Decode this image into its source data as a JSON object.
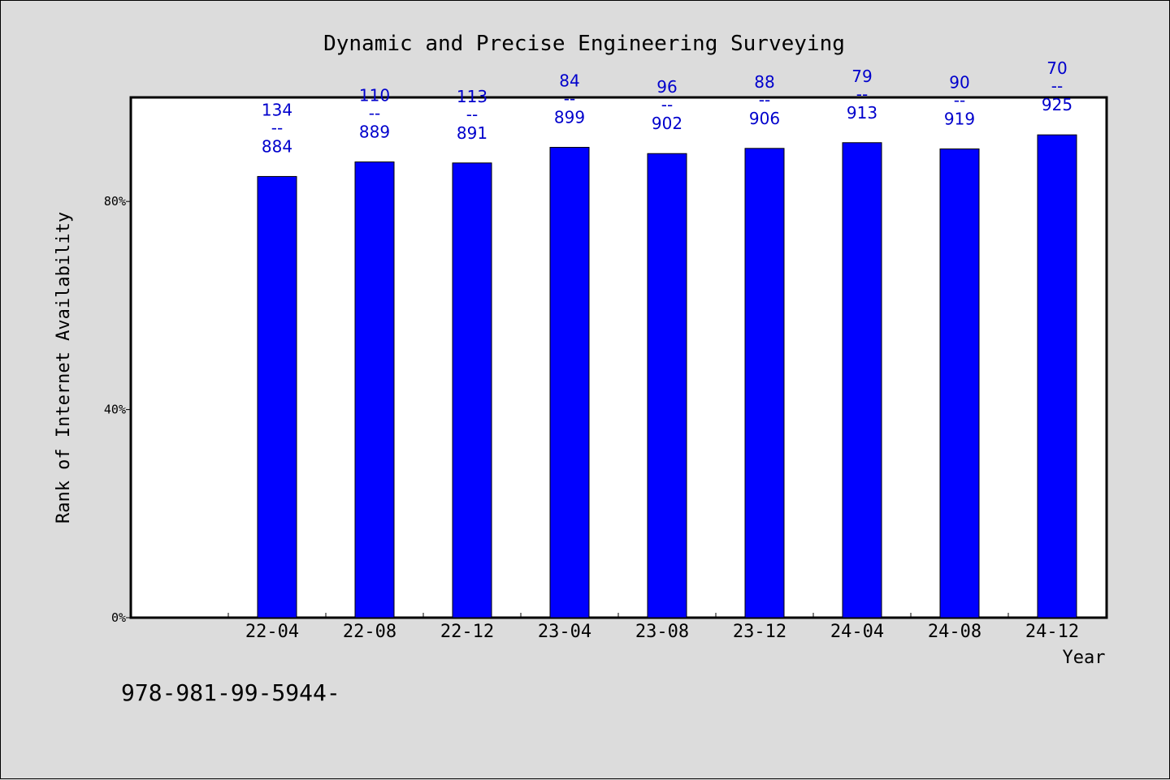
{
  "chart_data": {
    "type": "bar",
    "title": "Dynamic and Precise Engineering Surveying",
    "xlabel": "Year",
    "ylabel": "Rank of Internet Availability",
    "categories": [
      "22-04",
      "22-08",
      "22-12",
      "23-04",
      "23-08",
      "23-12",
      "24-04",
      "24-08",
      "24-12"
    ],
    "series": [
      {
        "values": [
          84.8,
          87.6,
          87.4,
          90.4,
          89.2,
          90.2,
          91.3,
          90.1,
          92.8
        ]
      }
    ],
    "annotations": [
      {
        "rank": "134",
        "sep": "--",
        "total": "884"
      },
      {
        "rank": "110",
        "sep": "--",
        "total": "889"
      },
      {
        "rank": "113",
        "sep": "--",
        "total": "891"
      },
      {
        "rank": "84",
        "sep": "--",
        "total": "899"
      },
      {
        "rank": "96",
        "sep": "--",
        "total": "902"
      },
      {
        "rank": "88",
        "sep": "--",
        "total": "906"
      },
      {
        "rank": "79",
        "sep": "--",
        "total": "913"
      },
      {
        "rank": "90",
        "sep": "--",
        "total": "919"
      },
      {
        "rank": "70",
        "sep": "--",
        "total": "925"
      }
    ],
    "yticks": [
      {
        "value": 0,
        "label": "0%"
      },
      {
        "value": 40,
        "label": "40%"
      },
      {
        "value": 80,
        "label": "80%"
      }
    ],
    "ylim": [
      0,
      100
    ],
    "grid": false,
    "bar_color": "#0000ff",
    "label_color": "#0000cc"
  },
  "footer": {
    "text": "978-981-99-5944-"
  }
}
